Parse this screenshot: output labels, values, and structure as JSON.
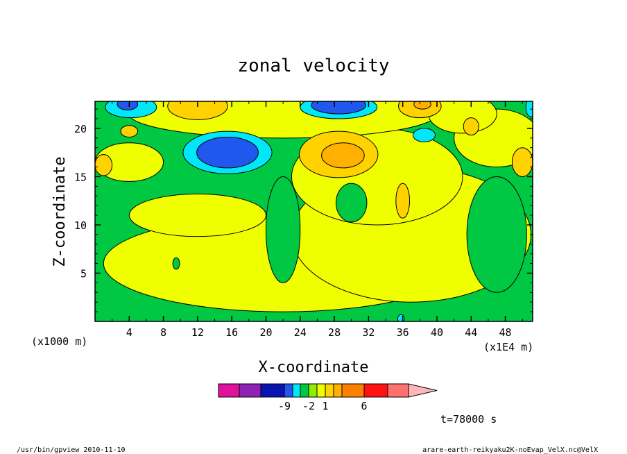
{
  "chart_data": {
    "type": "heatmap",
    "title": "zonal velocity",
    "xlabel": "X-coordinate",
    "ylabel": "Z-coordinate",
    "x_unit_note": "(x1E4 m)",
    "y_unit_note": "(x1000 m)",
    "x_ticks": [
      "4",
      "8",
      "12",
      "16",
      "20",
      "24",
      "28",
      "32",
      "36",
      "40",
      "44",
      "48"
    ],
    "y_ticks": [
      "5",
      "10",
      "15",
      "20"
    ],
    "xlim": [
      0,
      51.2
    ],
    "ylim": [
      0,
      22.8
    ],
    "colorbar": {
      "colors": [
        "#e0119b",
        "#8f21b3",
        "#0a14b0",
        "#2058ee",
        "#00e8f7",
        "#00c843",
        "#8ef000",
        "#f0ff00",
        "#ffd200",
        "#ffb000",
        "#ff7f00",
        "#ff1212",
        "#ff7070",
        "#ffb6b6"
      ],
      "labels": [
        {
          "text": "-9",
          "index": 2
        },
        {
          "text": "-2",
          "index": 5
        },
        {
          "text": "1",
          "index": 7
        },
        {
          "text": "6",
          "index": 10
        }
      ]
    },
    "contour_regions": [
      {
        "level": "1",
        "shape": "ellipse",
        "cx": 22,
        "cy": 6,
        "rx": 21,
        "ry": 5
      },
      {
        "level": "1",
        "shape": "ellipse",
        "cx": 37,
        "cy": 9,
        "rx": 14,
        "ry": 7
      },
      {
        "level": "1",
        "shape": "ellipse",
        "cx": 12,
        "cy": 11,
        "rx": 8,
        "ry": 2.2
      },
      {
        "level": "1",
        "shape": "ellipse",
        "cx": 33,
        "cy": 15,
        "rx": 10,
        "ry": 5
      },
      {
        "level": "1",
        "shape": "ellipse",
        "cx": 22,
        "cy": 21.5,
        "rx": 18,
        "ry": 2.5
      },
      {
        "level": "1",
        "shape": "ellipse",
        "cx": 4,
        "cy": 16.5,
        "rx": 4,
        "ry": 2
      },
      {
        "level": "1",
        "shape": "ellipse",
        "cx": 47,
        "cy": 19,
        "rx": 5,
        "ry": 3
      },
      {
        "level": "1",
        "shape": "ellipse",
        "cx": 43,
        "cy": 21.5,
        "rx": 4,
        "ry": 2
      },
      {
        "level": "2",
        "shape": "ellipse",
        "cx": 28.5,
        "cy": 17.3,
        "rx": 4.6,
        "ry": 2.4
      },
      {
        "level": "2",
        "shape": "ellipse",
        "cx": 12,
        "cy": 22.3,
        "rx": 3.5,
        "ry": 1.4
      },
      {
        "level": "2",
        "shape": "ellipse",
        "cx": 38,
        "cy": 22.3,
        "rx": 2.5,
        "ry": 1.2
      },
      {
        "level": "2",
        "shape": "ellipse",
        "cx": 36,
        "cy": 12.5,
        "rx": 0.8,
        "ry": 1.8
      },
      {
        "level": "2",
        "shape": "ellipse",
        "cx": 44,
        "cy": 20.2,
        "rx": 0.9,
        "ry": 0.9
      },
      {
        "level": "2",
        "shape": "ellipse",
        "cx": 50,
        "cy": 16.5,
        "rx": 1.2,
        "ry": 1.5
      },
      {
        "level": "2",
        "shape": "ellipse",
        "cx": 1,
        "cy": 16.2,
        "rx": 1,
        "ry": 1.1
      },
      {
        "level": "2",
        "shape": "ellipse",
        "cx": 4,
        "cy": 19.7,
        "rx": 1,
        "ry": 0.6
      },
      {
        "level": "3",
        "shape": "ellipse",
        "cx": 29,
        "cy": 17.2,
        "rx": 2.5,
        "ry": 1.3
      },
      {
        "level": "3",
        "shape": "ellipse",
        "cx": 38.3,
        "cy": 22.5,
        "rx": 1,
        "ry": 0.5
      },
      {
        "level": "-1",
        "shape": "ellipse",
        "cx": 15.5,
        "cy": 17.5,
        "rx": 5.2,
        "ry": 2.2
      },
      {
        "level": "-1",
        "shape": "ellipse",
        "cx": 28.5,
        "cy": 22.2,
        "rx": 4.5,
        "ry": 1.2
      },
      {
        "level": "-1",
        "shape": "ellipse",
        "cx": 4.2,
        "cy": 22.2,
        "rx": 3,
        "ry": 1.1
      },
      {
        "level": "-1",
        "shape": "ellipse",
        "cx": 38.5,
        "cy": 19.3,
        "rx": 1.3,
        "ry": 0.7
      },
      {
        "level": "-1",
        "shape": "ellipse",
        "cx": 51,
        "cy": 22.2,
        "rx": 0.6,
        "ry": 1
      },
      {
        "level": "-1",
        "shape": "ellipse",
        "cx": 35.8,
        "cy": 0.3,
        "rx": 0.4,
        "ry": 0.4
      },
      {
        "level": "-2",
        "shape": "ellipse",
        "cx": 15.5,
        "cy": 17.5,
        "rx": 3.6,
        "ry": 1.6
      },
      {
        "level": "-2",
        "shape": "ellipse",
        "cx": 28.5,
        "cy": 22.4,
        "rx": 3.2,
        "ry": 0.9
      },
      {
        "level": "-2",
        "shape": "ellipse",
        "cx": 3.8,
        "cy": 22.5,
        "rx": 1.2,
        "ry": 0.6
      }
    ],
    "green_intrusions": [
      {
        "shape": "ellipse",
        "cx": 22,
        "cy": 9.5,
        "rx": 2,
        "ry": 5.5
      },
      {
        "shape": "ellipse",
        "cx": 30,
        "cy": 12.3,
        "rx": 1.8,
        "ry": 2
      },
      {
        "shape": "ellipse",
        "cx": 47,
        "cy": 9,
        "rx": 3.5,
        "ry": 6
      },
      {
        "shape": "ellipse",
        "cx": 9.5,
        "cy": 6,
        "rx": 0.4,
        "ry": 0.6
      }
    ],
    "annotation": "t=78000 s"
  },
  "footer": {
    "left": "/usr/bin/gpview   2010-11-10",
    "right": "arare-earth-reikyaku2K-noEvap_VelX.nc@VelX"
  }
}
